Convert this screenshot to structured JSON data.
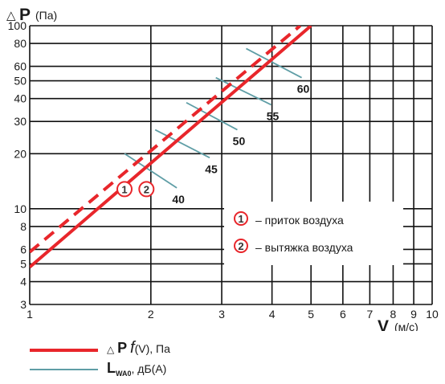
{
  "chart_data": {
    "type": "line",
    "x_axis": {
      "symbol_delta": "△",
      "symbol": "V",
      "unit": "(м/с)",
      "scale": "log",
      "range": [
        1,
        10
      ],
      "ticks": [
        1,
        2,
        3,
        4,
        5,
        6,
        7,
        8,
        9,
        10
      ]
    },
    "y_axis": {
      "symbol_delta": "△",
      "symbol": "P",
      "unit": "(Па)",
      "scale": "log",
      "range": [
        3,
        100
      ],
      "ticks": [
        3,
        4,
        5,
        6,
        8,
        10,
        20,
        30,
        40,
        50,
        60,
        80,
        100
      ]
    },
    "grid": true,
    "series": [
      {
        "marker": "1",
        "style": "solid",
        "color": "#e8262b",
        "points": [
          [
            1,
            4.8
          ],
          [
            5,
            100
          ]
        ]
      },
      {
        "marker": "2",
        "style": "dashed",
        "color": "#e8262b",
        "points": [
          [
            1,
            5.8
          ],
          [
            4.7,
            100
          ]
        ]
      }
    ],
    "lwa_lines": {
      "color": "#5f9ea6",
      "items": [
        {
          "label": "40",
          "from": [
            1.72,
            20
          ],
          "to": [
            2.32,
            13
          ]
        },
        {
          "label": "45",
          "from": [
            2.05,
            27
          ],
          "to": [
            2.8,
            19
          ]
        },
        {
          "label": "50",
          "from": [
            2.45,
            38
          ],
          "to": [
            3.28,
            27
          ]
        },
        {
          "label": "55",
          "from": [
            2.9,
            52
          ],
          "to": [
            3.98,
            37
          ]
        },
        {
          "label": "60",
          "from": [
            3.45,
            75
          ],
          "to": [
            4.74,
            52
          ]
        }
      ]
    },
    "marker_labels": [
      {
        "text": "1",
        "at": [
          1.72,
          12.8
        ]
      },
      {
        "text": "2",
        "at": [
          1.95,
          12.8
        ]
      }
    ],
    "legend_box": {
      "items": [
        {
          "marker": "1",
          "text": "– приток воздуха"
        },
        {
          "marker": "2",
          "text": "– вытяжка воздуха"
        }
      ]
    },
    "bottom_legend": {
      "line1": {
        "delta": "△",
        "symbol": "P",
        "func": "f",
        "rest": "(V), Па",
        "color": "#e8262b"
      },
      "line2": {
        "symbol": "L",
        "sub": "WA0",
        "rest": ", дБ(А)",
        "color": "#5f9ea6"
      }
    }
  }
}
